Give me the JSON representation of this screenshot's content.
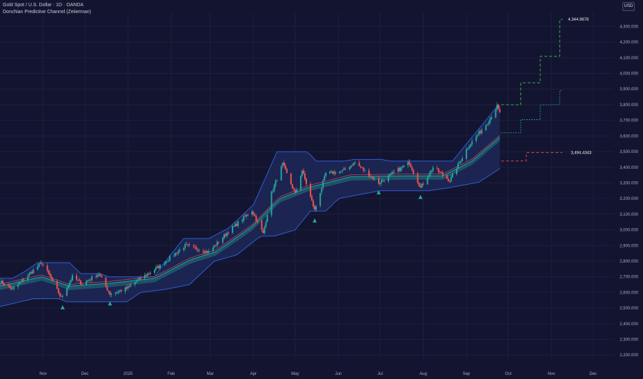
{
  "header": {
    "title": "Gold Spot / U.S. Dollar · 1D · OANDA",
    "indicator": "Donchian Predictive Channel (Zeiierman)",
    "currency": "USD"
  },
  "colors": {
    "background": "#131530",
    "up_candle": "#26a69a",
    "down_candle": "#ef5350",
    "channel_line": "#2f5ed7",
    "channel_fill": "#1e2757",
    "signal": "#26a69a",
    "projection_upper": "#2db84f",
    "projection_mid": "#19b3a0",
    "projection_lower": "#e04848"
  },
  "chart_data": {
    "type": "candlestick",
    "y_axis": {
      "ticks": [
        "2,200.000",
        "2,300.000",
        "2,400.000",
        "2,500.000",
        "2,600.000",
        "2,700.000",
        "2,800.000",
        "2,900.000",
        "3,000.000",
        "3,100.000",
        "3,200.000",
        "3,300.000",
        "3,400.000",
        "3,500.000",
        "3,600.000",
        "3,700.000",
        "3,800.000",
        "3,900.000",
        "4,000.000",
        "4,100.000",
        "4,200.000",
        "4,300.000"
      ],
      "range": [
        2170,
        4390
      ]
    },
    "x_axis": {
      "ticks": [
        "Nov",
        "Dec",
        "2025",
        "Feb",
        "Mar",
        "Apr",
        "May",
        "Jun",
        "Jul",
        "Aug",
        "Sep",
        "Oct",
        "Nov",
        "Dec"
      ],
      "tick_dates": [
        "2024-11-01",
        "2024-12-01",
        "2025-01-01",
        "2025-02-01",
        "2025-03-01",
        "2025-04-01",
        "2025-05-01",
        "2025-06-01",
        "2025-07-01",
        "2025-08-01",
        "2025-09-01",
        "2025-10-01",
        "2025-11-01",
        "2025-12-01"
      ],
      "range": [
        "2024-10-01",
        "2025-12-16"
      ]
    },
    "price_anchors": [
      [
        "2024-10-01",
        2670
      ],
      [
        "2024-10-10",
        2620
      ],
      [
        "2024-10-20",
        2700
      ],
      [
        "2024-10-31",
        2790
      ],
      [
        "2024-11-06",
        2700
      ],
      [
        "2024-11-14",
        2565
      ],
      [
        "2024-11-22",
        2700
      ],
      [
        "2024-11-29",
        2655
      ],
      [
        "2024-12-11",
        2720
      ],
      [
        "2024-12-19",
        2590
      ],
      [
        "2024-12-31",
        2625
      ],
      [
        "2025-01-10",
        2690
      ],
      [
        "2025-01-24",
        2770
      ],
      [
        "2025-02-11",
        2900
      ],
      [
        "2025-02-28",
        2858
      ],
      [
        "2025-03-14",
        2990
      ],
      [
        "2025-03-31",
        3125
      ],
      [
        "2025-04-08",
        2975
      ],
      [
        "2025-04-14",
        3235
      ],
      [
        "2025-04-22",
        3420
      ],
      [
        "2025-05-01",
        3230
      ],
      [
        "2025-05-06",
        3380
      ],
      [
        "2025-05-15",
        3125
      ],
      [
        "2025-05-23",
        3360
      ],
      [
        "2025-06-04",
        3375
      ],
      [
        "2025-06-13",
        3430
      ],
      [
        "2025-06-30",
        3300
      ],
      [
        "2025-07-22",
        3430
      ],
      [
        "2025-07-30",
        3270
      ],
      [
        "2025-08-08",
        3400
      ],
      [
        "2025-08-20",
        3315
      ],
      [
        "2025-09-02",
        3530
      ],
      [
        "2025-09-16",
        3685
      ],
      [
        "2025-09-23",
        3790
      ],
      [
        "2025-09-25",
        3745
      ]
    ],
    "channel": {
      "upper_anchors": [
        [
          "2024-10-01",
          2690
        ],
        [
          "2024-10-10",
          2690
        ],
        [
          "2024-10-18",
          2730
        ],
        [
          "2024-10-28",
          2790
        ],
        [
          "2024-11-20",
          2790
        ],
        [
          "2024-11-28",
          2720
        ],
        [
          "2024-12-12",
          2720
        ],
        [
          "2024-12-18",
          2700
        ],
        [
          "2025-01-20",
          2700
        ],
        [
          "2025-01-27",
          2790
        ],
        [
          "2025-02-10",
          2945
        ],
        [
          "2025-02-28",
          2945
        ],
        [
          "2025-03-14",
          3010
        ],
        [
          "2025-04-01",
          3160
        ],
        [
          "2025-04-18",
          3500
        ],
        [
          "2025-05-10",
          3500
        ],
        [
          "2025-05-16",
          3440
        ],
        [
          "2025-06-05",
          3440
        ],
        [
          "2025-06-12",
          3450
        ],
        [
          "2025-07-02",
          3450
        ],
        [
          "2025-07-08",
          3440
        ],
        [
          "2025-08-22",
          3440
        ],
        [
          "2025-09-02",
          3560
        ],
        [
          "2025-09-15",
          3700
        ],
        [
          "2025-09-23",
          3790
        ],
        [
          "2025-09-26",
          3790
        ]
      ],
      "lower_anchors": [
        [
          "2024-10-01",
          2510
        ],
        [
          "2024-10-25",
          2560
        ],
        [
          "2024-11-12",
          2560
        ],
        [
          "2024-11-18",
          2540
        ],
        [
          "2024-12-31",
          2540
        ],
        [
          "2025-01-10",
          2600
        ],
        [
          "2025-01-28",
          2620
        ],
        [
          "2025-02-14",
          2650
        ],
        [
          "2025-03-04",
          2800
        ],
        [
          "2025-03-20",
          2840
        ],
        [
          "2025-04-06",
          2960
        ],
        [
          "2025-04-16",
          2960
        ],
        [
          "2025-05-01",
          3000
        ],
        [
          "2025-05-12",
          3120
        ],
        [
          "2025-05-23",
          3120
        ],
        [
          "2025-06-01",
          3200
        ],
        [
          "2025-07-01",
          3250
        ],
        [
          "2025-08-05",
          3250
        ],
        [
          "2025-08-20",
          3270
        ],
        [
          "2025-09-10",
          3305
        ],
        [
          "2025-09-23",
          3380
        ],
        [
          "2025-09-26",
          3400
        ]
      ],
      "basis_anchors": [
        [
          "2024-10-01",
          2640
        ],
        [
          "2024-10-31",
          2700
        ],
        [
          "2024-11-20",
          2640
        ],
        [
          "2024-12-20",
          2660
        ],
        [
          "2025-01-20",
          2690
        ],
        [
          "2025-02-15",
          2810
        ],
        [
          "2025-03-05",
          2860
        ],
        [
          "2025-03-31",
          3020
        ],
        [
          "2025-04-20",
          3200
        ],
        [
          "2025-05-10",
          3270
        ],
        [
          "2025-06-10",
          3340
        ],
        [
          "2025-07-15",
          3345
        ],
        [
          "2025-08-15",
          3345
        ],
        [
          "2025-09-05",
          3440
        ],
        [
          "2025-09-26",
          3600
        ]
      ]
    },
    "signals": [
      {
        "date": "2024-11-15",
        "price": 2545
      },
      {
        "date": "2024-12-19",
        "price": 2570
      },
      {
        "date": "2025-05-15",
        "price": 3100
      },
      {
        "date": "2025-06-30",
        "price": 3280
      },
      {
        "date": "2025-07-30",
        "price": 3250
      }
    ],
    "projection": {
      "upper": {
        "dates": [
          "2025-09-26",
          "2025-10-10",
          "2025-10-24",
          "2025-11-07",
          "2025-11-09"
        ],
        "values": [
          3800,
          3940,
          4110,
          4345,
          4345
        ],
        "end_label": "4,344.9678"
      },
      "mid": {
        "dates": [
          "2025-09-26",
          "2025-10-10",
          "2025-10-24",
          "2025-11-07",
          "2025-11-09"
        ],
        "values": [
          3620,
          3705,
          3800,
          3890,
          3890
        ]
      },
      "lower": {
        "dates": [
          "2025-09-26",
          "2025-10-10",
          "2025-10-14",
          "2025-11-09"
        ],
        "values": [
          3440,
          3440,
          3494,
          3494
        ],
        "end_label": "3,494.4343"
      }
    }
  }
}
